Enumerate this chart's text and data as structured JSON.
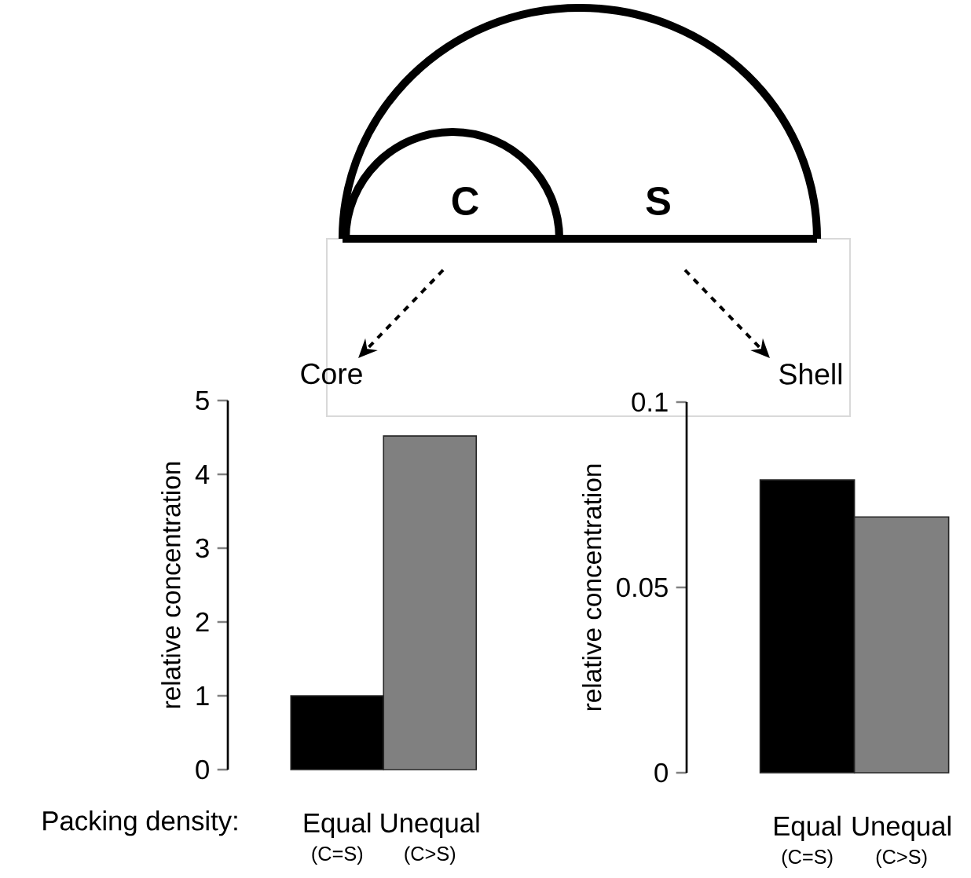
{
  "chart_data": [
    {
      "type": "bar",
      "categories": [
        "Equal",
        "Unequal"
      ],
      "values": [
        1,
        4.52
      ],
      "colors": [
        "#000000",
        "#808080"
      ],
      "ylim": [
        0,
        5
      ],
      "yticks": [
        0,
        1,
        2,
        3,
        4,
        5
      ],
      "ylabel": "relative concentration",
      "xlabel": "Packing density:",
      "annotations": [
        "(C=S)",
        "(C>S)",
        "C",
        "S",
        "Core",
        "Shell"
      ]
    },
    {
      "type": "bar",
      "categories": [
        "Equal",
        "Unequal"
      ],
      "values": [
        0.079,
        0.069
      ],
      "colors": [
        "#000000",
        "#808080"
      ],
      "ylim": [
        0,
        0.1
      ],
      "yticks": [
        0,
        0.05,
        0.1
      ],
      "ylabel": "relative concentration",
      "annotations": [
        "(C=S)",
        "(C>S)"
      ]
    }
  ]
}
